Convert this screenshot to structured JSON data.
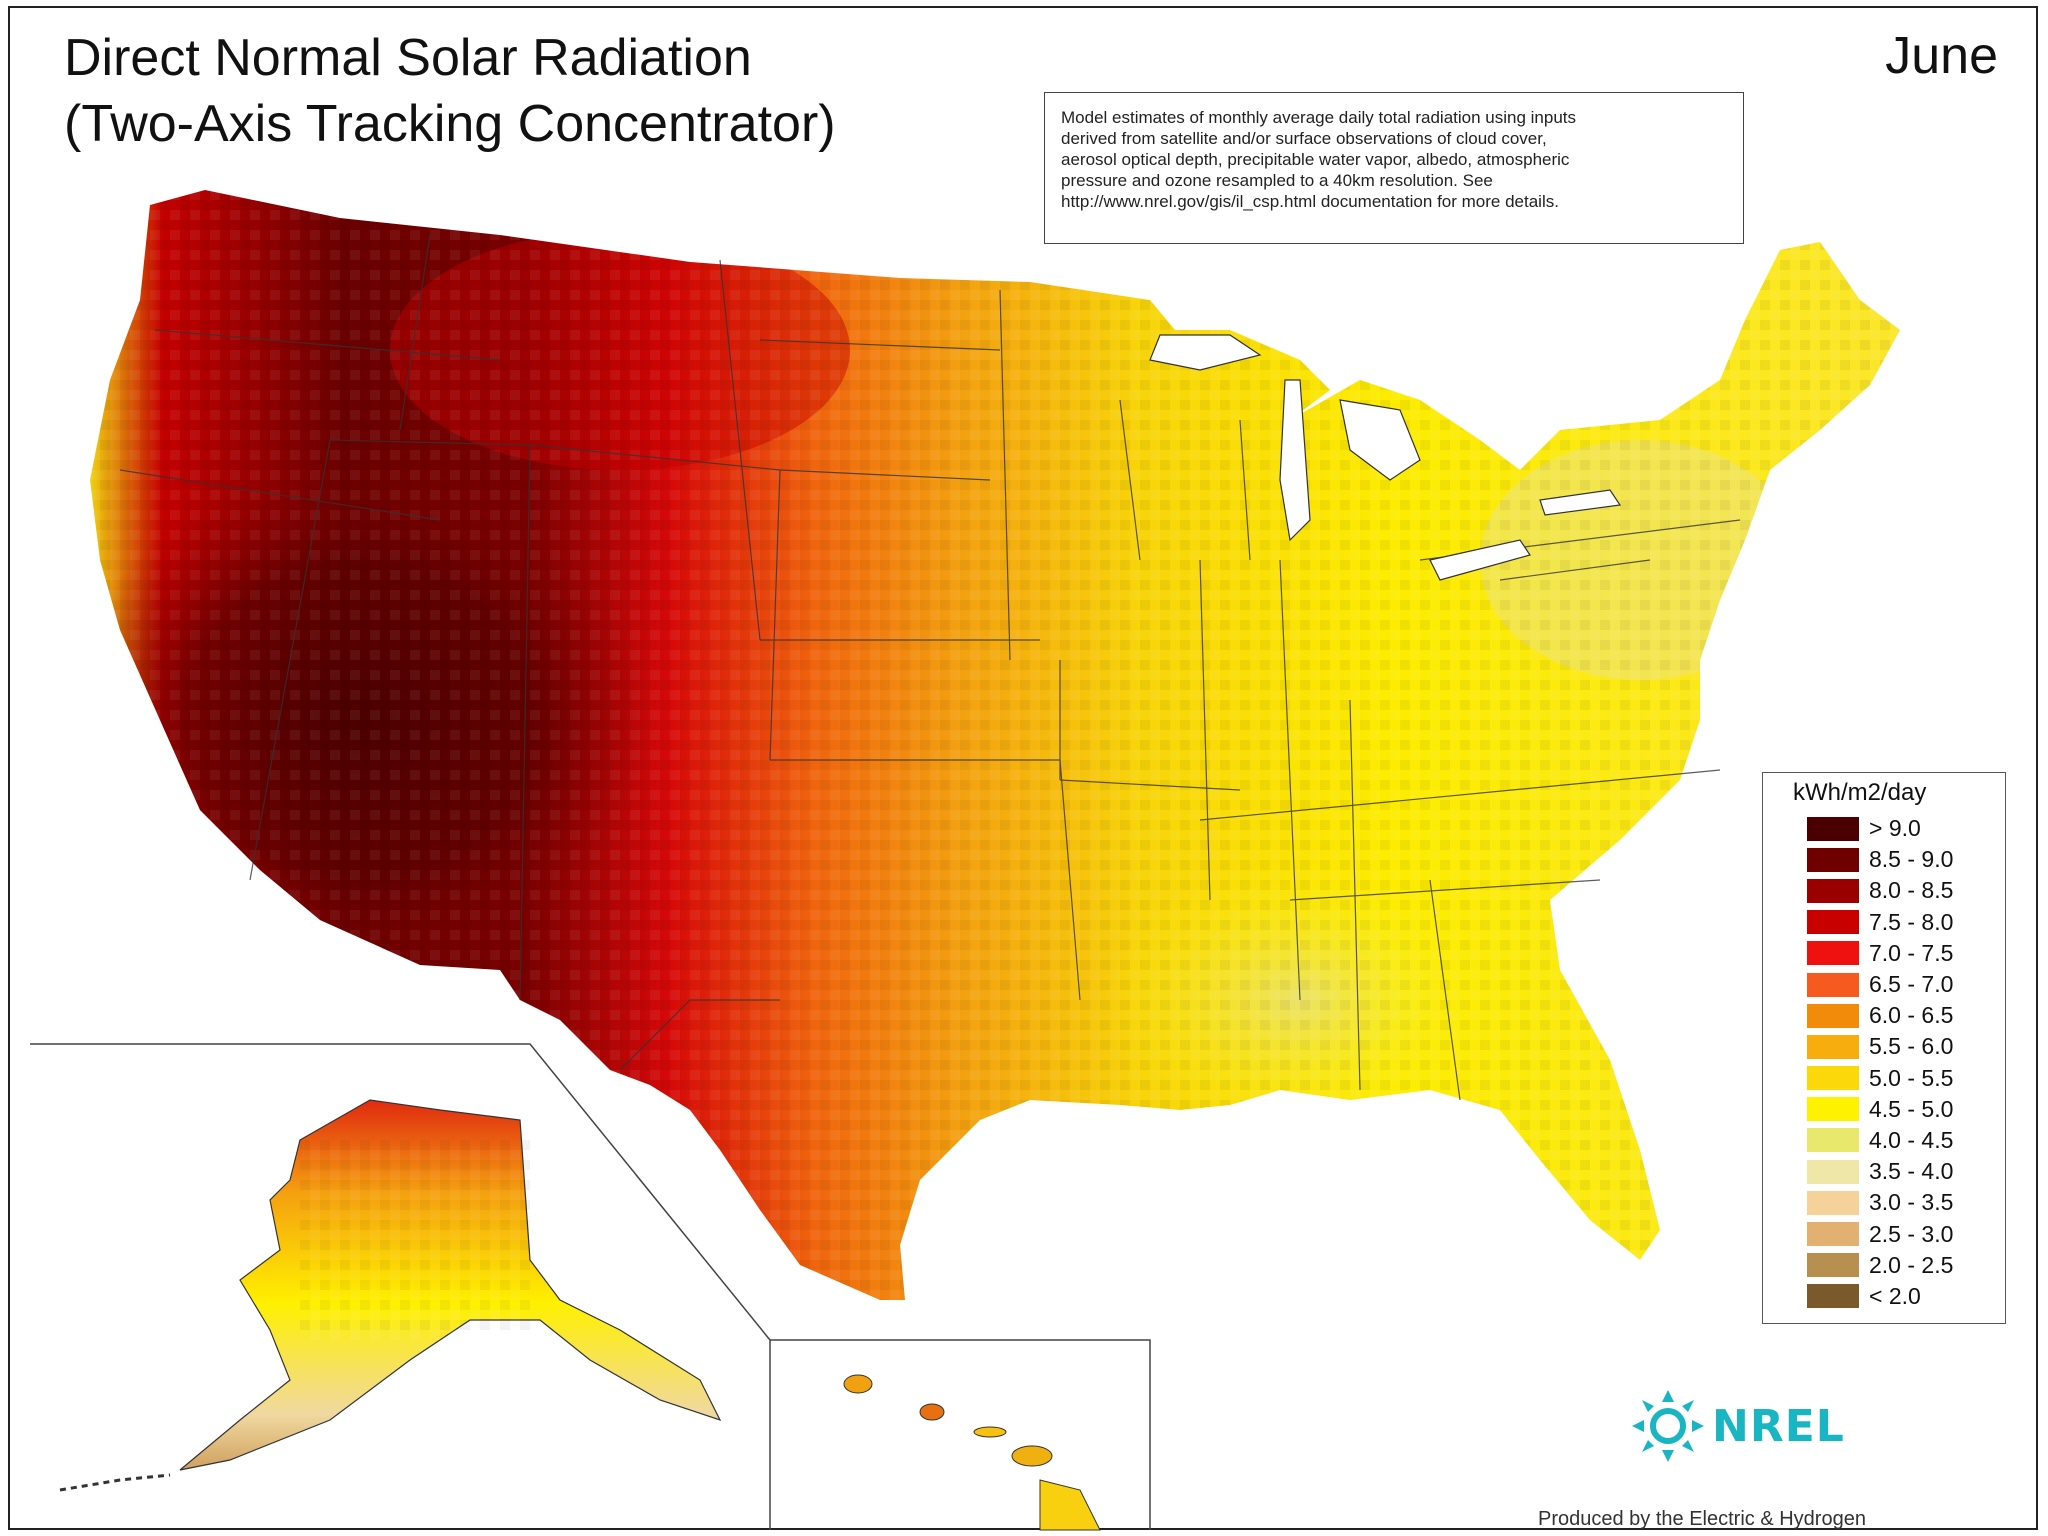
{
  "title": {
    "line1": "Direct Normal Solar Radiation",
    "line2": "(Two-Axis Tracking Concentrator)"
  },
  "month": "June",
  "note": {
    "lines": [
      "Model estimates of monthly average daily total radiation using inputs",
      "derived from satellite and/or surface observations of cloud cover,",
      "aerosol optical depth, precipitable water vapor, albedo, atmospheric",
      "pressure and ozone resampled to a 40km resolution.  See",
      "http://www.nrel.gov/gis/il_csp.html documentation for more details."
    ]
  },
  "legend": {
    "title": "kWh/m2/day",
    "entries": [
      {
        "label": "> 9.0",
        "color": "#4a0000"
      },
      {
        "label": "8.5 - 9.0",
        "color": "#6e0000"
      },
      {
        "label": "8.0 - 8.5",
        "color": "#9a0000"
      },
      {
        "label": "7.5 - 8.0",
        "color": "#c80000"
      },
      {
        "label": "7.0 - 7.5",
        "color": "#ef1010"
      },
      {
        "label": "6.5 - 7.0",
        "color": "#f75a1e"
      },
      {
        "label": "6.0 - 6.5",
        "color": "#f28a0a"
      },
      {
        "label": "5.5 - 6.0",
        "color": "#f8ad0e"
      },
      {
        "label": "5.0 - 5.5",
        "color": "#fbd80a"
      },
      {
        "label": "4.5 - 5.0",
        "color": "#fff200"
      },
      {
        "label": "4.0 - 4.5",
        "color": "#e8e86c"
      },
      {
        "label": "3.5 - 4.0",
        "color": "#eee7a8"
      },
      {
        "label": "3.0 - 3.5",
        "color": "#f5d29a"
      },
      {
        "label": "2.5 - 3.0",
        "color": "#e2b070"
      },
      {
        "label": "2.0 - 2.5",
        "color": "#b79050"
      },
      {
        "label": "< 2.0",
        "color": "#7a5a2a"
      }
    ]
  },
  "logo": {
    "text": "NREL",
    "color": "#19b5c2"
  },
  "producer": "Produced by the Electric & Hydrogen"
}
